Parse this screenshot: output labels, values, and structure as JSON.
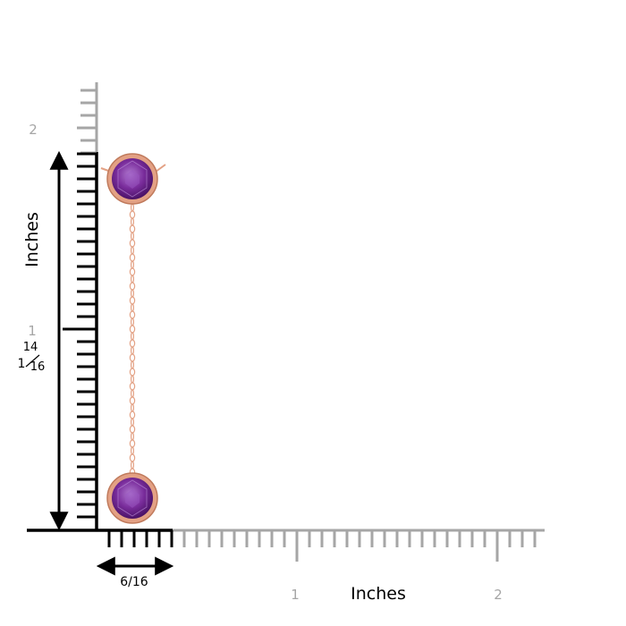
{
  "ruler": {
    "unit_label_vertical": "Inches",
    "unit_label_horizontal": "Inches",
    "vertical_tick_labels": [
      "1",
      "2"
    ],
    "horizontal_tick_labels": [
      "1",
      "2"
    ],
    "height_measurement": {
      "whole": "1",
      "numerator": "14",
      "denominator": "16"
    },
    "width_measurement": "6/16"
  },
  "product": {
    "stone_color": "#7a2d9c",
    "metal_color": "#e3a184",
    "stone_count": 2
  },
  "colors": {
    "ruler_gray": "#a6a6a6",
    "ruler_black": "#000000"
  }
}
